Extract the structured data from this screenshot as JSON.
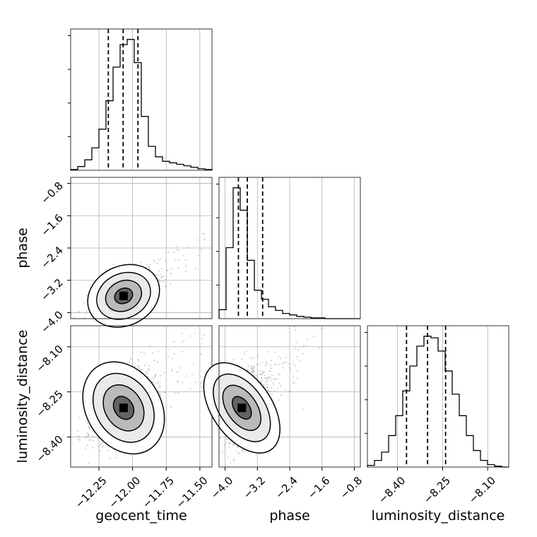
{
  "chart_data": {
    "type": "corner",
    "parameters": [
      "geocent_time",
      "phase",
      "luminosity_distance"
    ],
    "ranges": {
      "geocent_time": [
        -12.46,
        -11.41
      ],
      "phase": [
        -4.15,
        -0.65
      ],
      "luminosity_distance": [
        -8.5,
        -8.03
      ]
    },
    "ticks": {
      "geocent_time": [
        -12.25,
        -12.0,
        -11.75,
        -11.5
      ],
      "phase": [
        -4.0,
        -3.2,
        -2.4,
        -1.6,
        -0.8
      ],
      "luminosity_distance": [
        -8.4,
        -8.25,
        -8.1
      ]
    },
    "tick_labels": {
      "geocent_time": [
        "−12.25",
        "−12.00",
        "−11.75",
        "−11.50"
      ],
      "phase": [
        "−4.0",
        "−3.2",
        "−2.4",
        "−1.6",
        "−0.8"
      ],
      "luminosity_distance": [
        "−8.40",
        "−8.25",
        "−8.10"
      ]
    },
    "quantiles": {
      "geocent_time": [
        -12.18,
        -12.07,
        -11.96
      ],
      "phase": [
        -3.67,
        -3.45,
        -3.07
      ],
      "luminosity_distance": [
        -8.37,
        -8.3,
        -8.24
      ]
    },
    "histograms": {
      "geocent_time": [
        1,
        5,
        14,
        30,
        55,
        93,
        138,
        168,
        175,
        144,
        72,
        32,
        18,
        12,
        10,
        8,
        6,
        4,
        2,
        1
      ],
      "phase": [
        12,
        95,
        175,
        145,
        78,
        38,
        26,
        16,
        11,
        7,
        5,
        3,
        2,
        1,
        1,
        0,
        0,
        0,
        0,
        0
      ],
      "luminosity_distance": [
        2,
        8,
        18,
        38,
        62,
        92,
        122,
        146,
        158,
        156,
        140,
        116,
        88,
        62,
        38,
        20,
        8,
        3,
        1,
        0
      ]
    },
    "correlations": {
      "phase|geocent_time": 0.7,
      "luminosity_distance|geocent_time": 0.6,
      "luminosity_distance|phase": 0.55
    },
    "contour_levels": [
      0.118,
      0.393,
      0.675,
      0.865
    ],
    "grid": true,
    "colors": {
      "line": "#000000",
      "points": "#808080",
      "grid": "#b0b0b0"
    }
  }
}
